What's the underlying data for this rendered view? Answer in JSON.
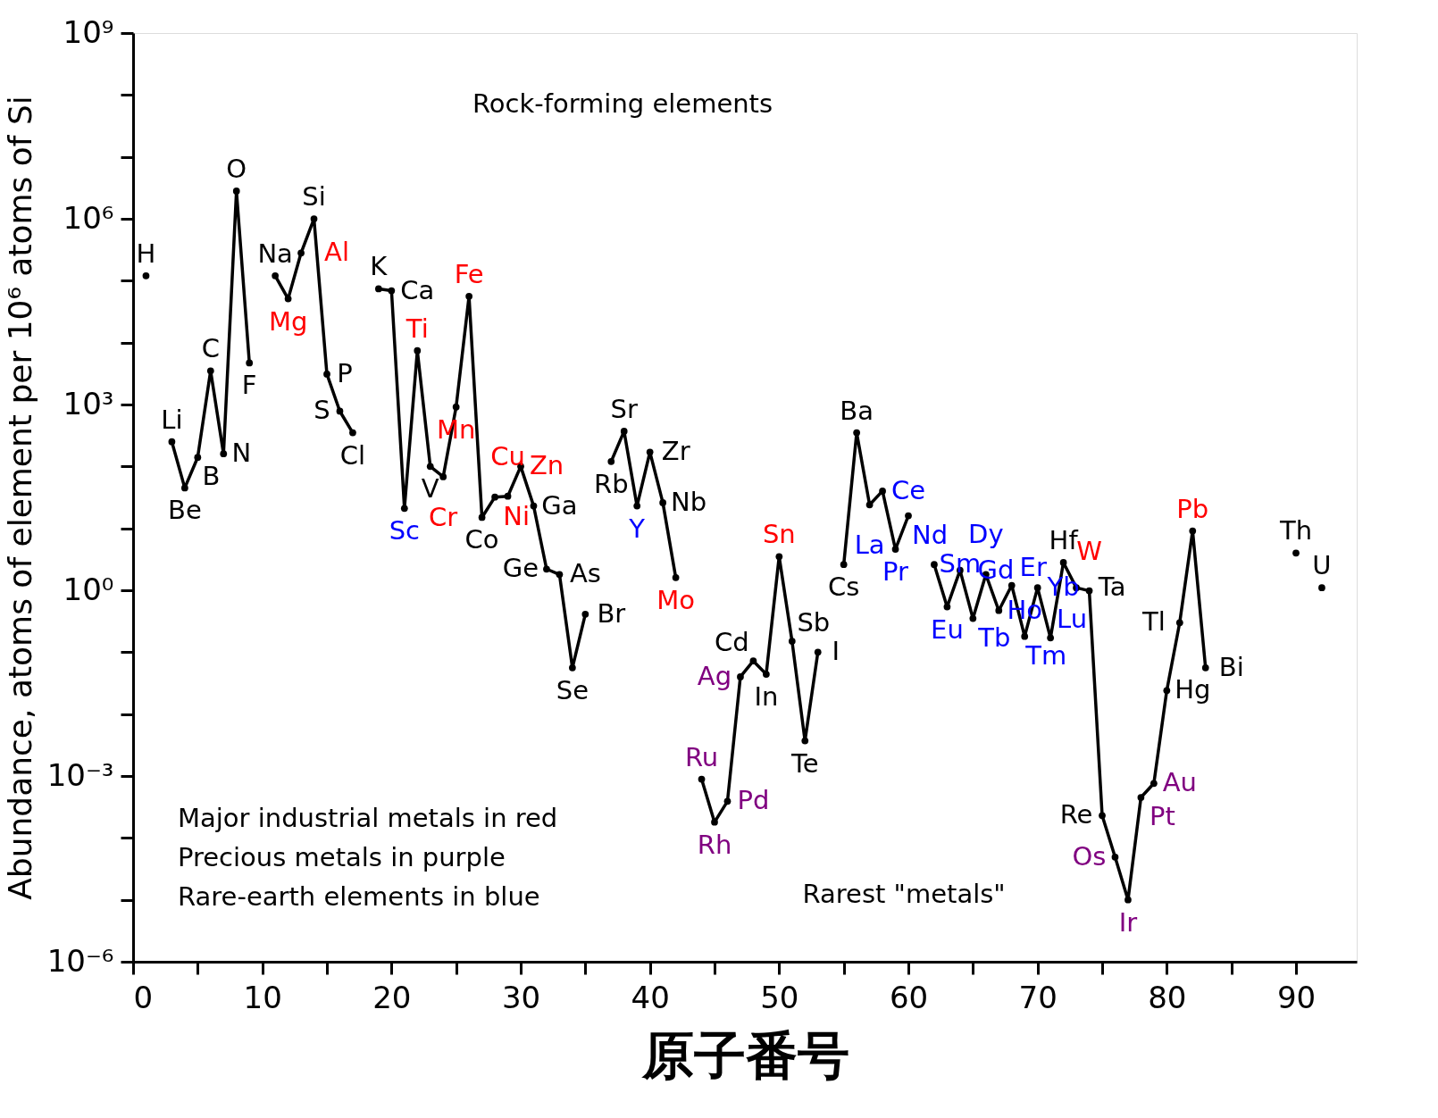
{
  "chart_data": {
    "type": "line",
    "xlabel": "原子番号",
    "ylabel": "Abundance, atoms of element per 10⁶ atoms of Si",
    "x": [
      1,
      2,
      3,
      4,
      5,
      6,
      7,
      8,
      9,
      10,
      11,
      12,
      13,
      14,
      15,
      16,
      17,
      18,
      19,
      20,
      21,
      22,
      23,
      24,
      25,
      26,
      27,
      28,
      29,
      30,
      31,
      32,
      33,
      34,
      35,
      36,
      37,
      38,
      39,
      40,
      41,
      42,
      43,
      44,
      45,
      46,
      47,
      48,
      49,
      50,
      51,
      52,
      53,
      54,
      55,
      56,
      57,
      58,
      59,
      60,
      61,
      62,
      63,
      64,
      65,
      66,
      67,
      68,
      69,
      70,
      71,
      72,
      73,
      74,
      75,
      76,
      77,
      78,
      79,
      80,
      81,
      82,
      83,
      84,
      90,
      91,
      92
    ],
    "series": [
      {
        "color": "#000000",
        "values": [
          120000,
          null,
          250,
          45,
          140,
          3500,
          160,
          2800000,
          4700,
          null,
          120000,
          51000,
          280000,
          1000000,
          3100,
          780,
          350,
          null,
          74000,
          69000,
          21,
          7400,
          100,
          68,
          910,
          56000,
          15,
          32,
          33,
          100,
          23,
          2.2,
          1.8,
          0.056,
          0.41,
          null,
          120,
          370,
          23,
          170,
          26,
          1.6,
          null,
          0.00089,
          0.00018,
          0.00039,
          0.04,
          0.072,
          0.044,
          3.5,
          0.15,
          0.0037,
          0.1,
          null,
          2.6,
          350,
          24,
          40,
          4.6,
          16,
          null,
          2.6,
          0.54,
          2.1,
          0.35,
          1.8,
          0.47,
          1.2,
          0.18,
          1.1,
          0.17,
          2.8,
          1.1,
          0.98,
          0.00023,
          4.9e-05,
          1e-05,
          0.00045,
          0.00076,
          0.024,
          0.3,
          9.1,
          0.056,
          null,
          4.0,
          null,
          1.1
        ],
        "value_labels": [
          "H",
          null,
          "Li",
          "Be",
          "B",
          "C",
          "N",
          "O",
          "F",
          null,
          "Na",
          "Mg",
          "Al",
          "Si",
          "P",
          "S",
          "Cl",
          null,
          "K",
          "Ca",
          "Sc",
          "Ti",
          "V",
          "Cr",
          "Mn",
          "Fe",
          "Co",
          "Ni",
          "Cu",
          "Zn",
          "Ga",
          "Ge",
          "As",
          "Se",
          "Br",
          null,
          "Rb",
          "Sr",
          "Y",
          "Zr",
          "Nb",
          "Mo",
          null,
          "Ru",
          "Rh",
          "Pd",
          "Ag",
          "Cd",
          "In",
          "Sn",
          "Sb",
          "Te",
          "I",
          null,
          "Cs",
          "Ba",
          "La",
          "Ce",
          "Pr",
          "Nd",
          null,
          "Sm",
          "Eu",
          "Gd",
          "Tb",
          "Dy",
          "Ho",
          "Er",
          "Tm",
          "Yb",
          "Lu",
          "Hf",
          "Ta",
          "W",
          "Re",
          "Os",
          "Ir",
          "Pt",
          "Au",
          "Hg",
          "Tl",
          "Pb",
          "Bi",
          null,
          "Th",
          null,
          "U"
        ],
        "colors": [
          "#000000",
          "#000000",
          "#000000",
          "#000000",
          "#000000",
          "#000000",
          "#000000",
          "#000000",
          "#000000",
          "#000000",
          "#000000",
          "#ff0000",
          "#ff0000",
          "#000000",
          "#000000",
          "#000000",
          "#000000",
          "#000000",
          "#000000",
          "#000000",
          "#0000ff",
          "#ff0000",
          "#000000",
          "#ff0000",
          "#ff0000",
          "#ff0000",
          "#000000",
          "#ff0000",
          "#ff0000",
          "#ff0000",
          "#000000",
          "#000000",
          "#000000",
          "#000000",
          "#000000",
          "#000000",
          "#000000",
          "#000000",
          "#0000ff",
          "#000000",
          "#000000",
          "#ff0000",
          "#000000",
          "#800080",
          "#800080",
          "#800080",
          "#800080",
          "#000000",
          "#000000",
          "#ff0000",
          "#000000",
          "#000000",
          "#000000",
          "#000000",
          "#000000",
          "#000000",
          "#0000ff",
          "#0000ff",
          "#0000ff",
          "#0000ff",
          "#000000",
          "#0000ff",
          "#0000ff",
          "#0000ff",
          "#0000ff",
          "#0000ff",
          "#0000ff",
          "#0000ff",
          "#0000ff",
          "#0000ff",
          "#0000ff",
          "#000000",
          "#000000",
          "#ff0000",
          "#000000",
          "#800080",
          "#800080",
          "#800080",
          "#800080",
          "#000000",
          "#000000",
          "#ff0000",
          "#000000",
          "#000000",
          "#000000",
          "#000000",
          "#000000"
        ]
      }
    ],
    "marker": "circle",
    "log": "y",
    "xlim": [
      0,
      94.7
    ],
    "ylim": [
      1e-06,
      1000000000
    ],
    "xticks": [
      0,
      {
        "value": 5,
        "label": null
      },
      10,
      {
        "value": 15,
        "label": null
      },
      20,
      {
        "value": 25,
        "label": null
      },
      30,
      {
        "value": 35,
        "label": null
      },
      40,
      {
        "value": 45,
        "label": null
      },
      50,
      {
        "value": 55,
        "label": null
      },
      60,
      {
        "value": 65,
        "label": null
      },
      70,
      {
        "value": 75,
        "label": null
      },
      80,
      {
        "value": 85,
        "label": null
      },
      90
    ],
    "yticks": [
      {
        "value": 1e-06,
        "label": "10⁻⁶"
      },
      {
        "value": 1e-05,
        "label": null
      },
      {
        "value": 0.0001,
        "label": null
      },
      {
        "value": 0.001,
        "label": "10⁻³"
      },
      {
        "value": 0.01,
        "label": null
      },
      {
        "value": 0.1,
        "label": null
      },
      {
        "value": 1,
        "label": "10⁰"
      },
      {
        "value": 10,
        "label": null
      },
      {
        "value": 100,
        "label": null
      },
      {
        "value": 1000,
        "label": "10³"
      },
      {
        "value": 10000,
        "label": null
      },
      {
        "value": 100000,
        "label": null
      },
      {
        "value": 1000000,
        "label": "10⁶"
      },
      {
        "value": 10000000,
        "label": null
      },
      {
        "value": 100000000,
        "label": null
      },
      {
        "value": 1000000000,
        "label": "10⁹"
      }
    ],
    "grid": false,
    "annotations": [
      "Rock-forming elements",
      "Rarest \"metals\"",
      "Major industrial metals in red",
      "Precious metals in purple",
      "Rare-earth elements in blue"
    ]
  }
}
